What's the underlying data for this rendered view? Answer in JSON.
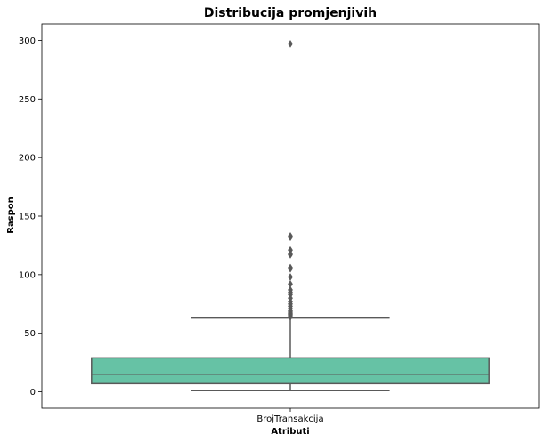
{
  "chart_data": {
    "type": "box",
    "title": "Distribucija promjenjivih",
    "xlabel": "Atributi",
    "ylabel": "Raspon",
    "categories": [
      "BrojTransakcija"
    ],
    "ylim": [
      -14,
      314
    ],
    "yticks": [
      0,
      50,
      100,
      150,
      200,
      250,
      300
    ],
    "grid": false,
    "legend": "none",
    "series": [
      {
        "category": "BrojTransakcija",
        "whisker_low": 1,
        "q1": 7,
        "median": 15,
        "q3": 29,
        "whisker_high": 63,
        "outliers": [
          64,
          65,
          66,
          67,
          68,
          69,
          71,
          73,
          75,
          77,
          80,
          83,
          85,
          87,
          92,
          98,
          105,
          106,
          117,
          118,
          121,
          132,
          133,
          297
        ]
      }
    ],
    "colors": {
      "box_fill": "#66c2a5",
      "line": "#595959",
      "axes": "#000000"
    }
  }
}
